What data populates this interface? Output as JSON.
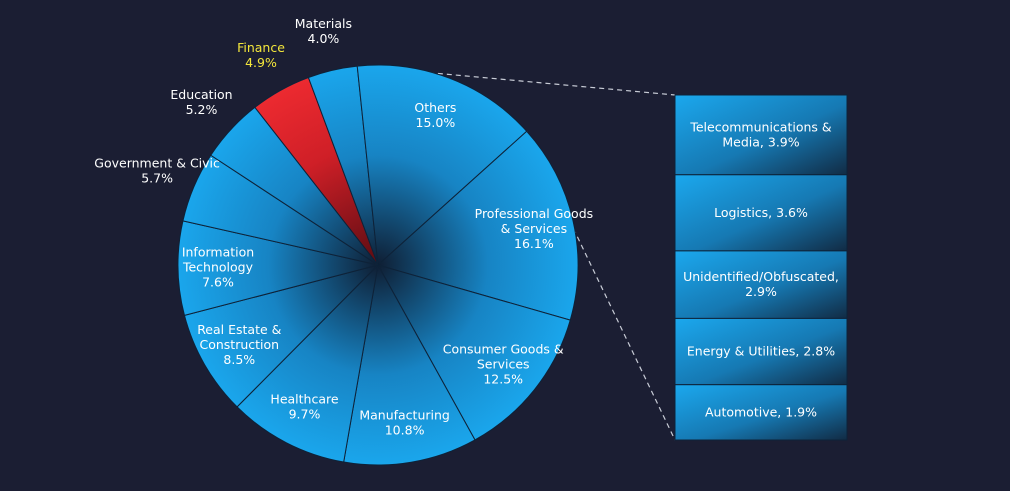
{
  "chart_data": {
    "type": "bar-of-pie",
    "highlight_color": "#e2232a",
    "highlight_label_color": "#f3e63b",
    "base_color": "#1aa3e8",
    "pie": [
      {
        "label": "Finance",
        "value": 4.9,
        "highlight": true
      },
      {
        "label": "Materials",
        "value": 4.0
      },
      {
        "label": "Others",
        "value": 15.0,
        "is_other": true
      },
      {
        "label": "Professional Goods & Services",
        "value": 16.1
      },
      {
        "label": "Consumer Goods & Services",
        "value": 12.5
      },
      {
        "label": "Manufacturing",
        "value": 10.8
      },
      {
        "label": "Healthcare",
        "value": 9.7
      },
      {
        "label": "Real Estate & Construction",
        "value": 8.5
      },
      {
        "label": "Information Technology",
        "value": 7.6
      },
      {
        "label": "Government & Civic",
        "value": 5.7
      },
      {
        "label": "Education",
        "value": 5.2
      }
    ],
    "others_breakdown": [
      {
        "label": "Telecommunications & Media",
        "value": 3.9
      },
      {
        "label": "Logistics",
        "value": 3.6
      },
      {
        "label": "Unidentified/Obfuscated",
        "value": 2.9
      },
      {
        "label": "Energy & Utilities",
        "value": 2.8
      },
      {
        "label": "Automotive",
        "value": 1.9
      }
    ]
  }
}
